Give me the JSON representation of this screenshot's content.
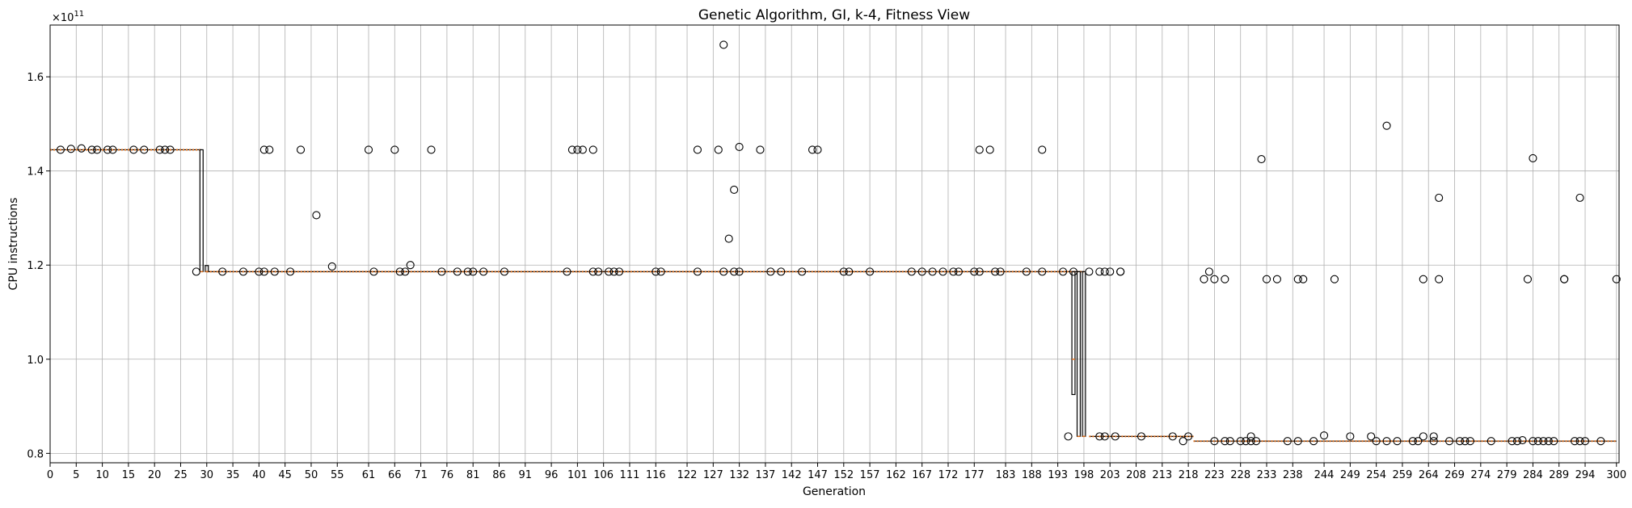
{
  "chart_data": {
    "type": "box",
    "title": "Genetic Algorithm, GI, k-4, Fitness View",
    "xlabel": "Generation",
    "ylabel": "CPU instructions",
    "y_offset_label": "×10",
    "y_offset_exponent": "11",
    "xlim": [
      0,
      300.5
    ],
    "ylim": [
      0.78,
      1.71
    ],
    "grid": true,
    "x_tick_labels": [
      "0",
      "5",
      "10",
      "15",
      "20",
      "25",
      "30",
      "35",
      "40",
      "45",
      "50",
      "55",
      "61",
      "66",
      "71",
      "76",
      "81",
      "86",
      "91",
      "96",
      "101",
      "106",
      "111",
      "116",
      "122",
      "127",
      "132",
      "137",
      "142",
      "147",
      "152",
      "157",
      "162",
      "167",
      "172",
      "177",
      "183",
      "188",
      "193",
      "198",
      "203",
      "208",
      "213",
      "218",
      "223",
      "228",
      "233",
      "238",
      "244",
      "249",
      "254",
      "259",
      "264",
      "269",
      "274",
      "279",
      "284",
      "289",
      "294",
      "300"
    ],
    "y_tick_labels": [
      "0.8",
      "1.0",
      "1.2",
      "1.4",
      "1.6"
    ],
    "y_ticks": [
      0.8,
      1.0,
      1.2,
      1.4,
      1.6
    ],
    "levels": {
      "early": 1.445,
      "mid": 1.186,
      "late": 0.826
    },
    "segments": [
      {
        "from": 0,
        "to": 29,
        "median": 1.445
      },
      {
        "from": 30,
        "to": 198,
        "median": 1.186
      },
      {
        "from": 199,
        "to": 219,
        "median": 0.836
      },
      {
        "from": 219,
        "to": 300,
        "median": 0.826
      }
    ],
    "boxes": [
      {
        "x": 29,
        "q1": 1.186,
        "q3": 1.445,
        "median": 1.186
      },
      {
        "x": 30,
        "q1": 1.186,
        "q3": 1.199,
        "median": 1.186
      },
      {
        "x": 196,
        "q1": 0.925,
        "q3": 1.186,
        "median": 1.0
      },
      {
        "x": 197,
        "q1": 0.836,
        "q3": 1.186,
        "median": 0.836
      },
      {
        "x": 198,
        "q1": 0.836,
        "q3": 1.186,
        "median": 0.836
      }
    ],
    "outliers": [
      [
        2,
        1.445
      ],
      [
        4,
        1.447
      ],
      [
        6,
        1.448
      ],
      [
        8,
        1.445
      ],
      [
        9,
        1.445
      ],
      [
        11,
        1.445
      ],
      [
        12,
        1.445
      ],
      [
        16,
        1.445
      ],
      [
        18,
        1.445
      ],
      [
        21,
        1.445
      ],
      [
        22,
        1.445
      ],
      [
        23,
        1.445
      ],
      [
        28,
        1.186
      ],
      [
        33,
        1.186
      ],
      [
        37,
        1.186
      ],
      [
        40,
        1.186
      ],
      [
        41,
        1.186
      ],
      [
        41,
        1.445
      ],
      [
        42,
        1.445
      ],
      [
        43,
        1.186
      ],
      [
        46,
        1.186
      ],
      [
        48,
        1.445
      ],
      [
        51,
        1.306
      ],
      [
        54,
        1.197
      ],
      [
        61,
        1.445
      ],
      [
        62,
        1.186
      ],
      [
        66,
        1.445
      ],
      [
        67,
        1.186
      ],
      [
        68,
        1.186
      ],
      [
        69,
        1.2
      ],
      [
        73,
        1.445
      ],
      [
        75,
        1.186
      ],
      [
        78,
        1.186
      ],
      [
        80,
        1.186
      ],
      [
        81,
        1.186
      ],
      [
        83,
        1.186
      ],
      [
        87,
        1.186
      ],
      [
        99,
        1.186
      ],
      [
        100,
        1.445
      ],
      [
        101,
        1.445
      ],
      [
        102,
        1.445
      ],
      [
        104,
        1.445
      ],
      [
        104,
        1.186
      ],
      [
        105,
        1.186
      ],
      [
        107,
        1.186
      ],
      [
        108,
        1.186
      ],
      [
        109,
        1.186
      ],
      [
        116,
        1.186
      ],
      [
        117,
        1.186
      ],
      [
        124,
        1.445
      ],
      [
        124,
        1.186
      ],
      [
        128,
        1.445
      ],
      [
        129,
        1.668
      ],
      [
        129,
        1.186
      ],
      [
        130,
        1.256
      ],
      [
        131,
        1.36
      ],
      [
        131,
        1.186
      ],
      [
        132,
        1.451
      ],
      [
        132,
        1.186
      ],
      [
        136,
        1.445
      ],
      [
        138,
        1.186
      ],
      [
        140,
        1.186
      ],
      [
        144,
        1.186
      ],
      [
        146,
        1.445
      ],
      [
        147,
        1.445
      ],
      [
        152,
        1.186
      ],
      [
        153,
        1.186
      ],
      [
        157,
        1.186
      ],
      [
        165,
        1.186
      ],
      [
        167,
        1.186
      ],
      [
        169,
        1.186
      ],
      [
        171,
        1.186
      ],
      [
        173,
        1.186
      ],
      [
        174,
        1.186
      ],
      [
        177,
        1.186
      ],
      [
        178,
        1.445
      ],
      [
        178,
        1.186
      ],
      [
        180,
        1.445
      ],
      [
        181,
        1.186
      ],
      [
        182,
        1.186
      ],
      [
        187,
        1.186
      ],
      [
        190,
        1.445
      ],
      [
        190,
        1.186
      ],
      [
        194,
        1.186
      ],
      [
        196,
        1.186
      ],
      [
        195,
        0.836
      ],
      [
        199,
        1.186
      ],
      [
        201,
        1.186
      ],
      [
        201,
        0.836
      ],
      [
        202,
        1.186
      ],
      [
        202,
        0.836
      ],
      [
        203,
        1.186
      ],
      [
        204,
        0.836
      ],
      [
        205,
        1.186
      ],
      [
        205,
        1.186
      ],
      [
        209,
        0.836
      ],
      [
        215,
        0.836
      ],
      [
        217,
        0.826
      ],
      [
        218,
        0.836
      ],
      [
        221,
        1.17
      ],
      [
        222,
        1.186
      ],
      [
        223,
        1.17
      ],
      [
        223,
        0.826
      ],
      [
        225,
        0.826
      ],
      [
        225,
        1.17
      ],
      [
        226,
        0.826
      ],
      [
        228,
        0.826
      ],
      [
        229,
        0.826
      ],
      [
        230,
        0.826
      ],
      [
        230,
        0.836
      ],
      [
        231,
        0.826
      ],
      [
        232,
        1.425
      ],
      [
        233,
        1.17
      ],
      [
        235,
        1.17
      ],
      [
        237,
        0.826
      ],
      [
        239,
        1.17
      ],
      [
        239,
        0.826
      ],
      [
        240,
        1.17
      ],
      [
        242,
        0.826
      ],
      [
        244,
        0.838
      ],
      [
        246,
        1.17
      ],
      [
        249,
        0.836
      ],
      [
        253,
        0.836
      ],
      [
        254,
        0.826
      ],
      [
        256,
        1.496
      ],
      [
        256,
        0.826
      ],
      [
        258,
        0.826
      ],
      [
        261,
        0.826
      ],
      [
        262,
        0.826
      ],
      [
        263,
        0.836
      ],
      [
        263,
        1.17
      ],
      [
        265,
        0.836
      ],
      [
        265,
        0.826
      ],
      [
        266,
        1.343
      ],
      [
        266,
        1.17
      ],
      [
        268,
        0.826
      ],
      [
        270,
        0.826
      ],
      [
        271,
        0.826
      ],
      [
        272,
        0.826
      ],
      [
        276,
        0.826
      ],
      [
        280,
        0.826
      ],
      [
        281,
        0.826
      ],
      [
        282,
        0.828
      ],
      [
        283,
        1.17
      ],
      [
        284,
        1.427
      ],
      [
        284,
        0.826
      ],
      [
        285,
        0.826
      ],
      [
        286,
        0.826
      ],
      [
        287,
        0.826
      ],
      [
        288,
        0.826
      ],
      [
        290,
        1.17
      ],
      [
        290,
        1.17
      ],
      [
        292,
        0.826
      ],
      [
        293,
        1.343
      ],
      [
        293,
        0.826
      ],
      [
        294,
        0.826
      ],
      [
        297,
        0.826
      ],
      [
        300,
        1.17
      ]
    ],
    "colors": {
      "box": "#000000",
      "median": "#e0701e",
      "grid": "#b0b0b0"
    }
  }
}
